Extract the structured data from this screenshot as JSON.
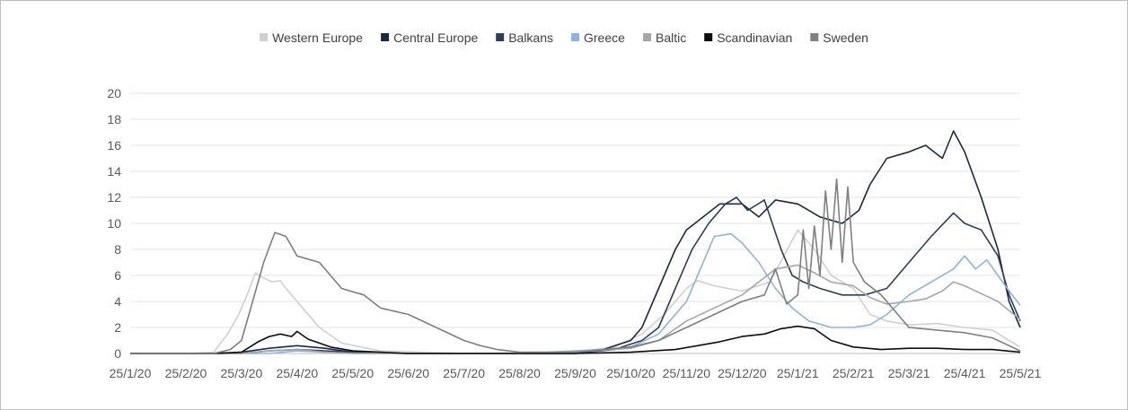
{
  "chart_data": {
    "type": "line",
    "title": "",
    "xlabel": "",
    "ylabel": "",
    "ylim": [
      0,
      20
    ],
    "y_ticks": [
      0,
      2,
      4,
      6,
      8,
      10,
      12,
      14,
      16,
      18,
      20
    ],
    "x_ticks": [
      "25/1/20",
      "25/2/20",
      "25/3/20",
      "25/4/20",
      "25/5/20",
      "25/6/20",
      "25/7/20",
      "25/8/20",
      "25/9/20",
      "25/10/20",
      "25/11/20",
      "25/12/20",
      "25/1/21",
      "25/2/21",
      "25/3/21",
      "25/4/21",
      "25/5/21"
    ],
    "grid": "horizontal",
    "legend_position": "top-center",
    "x_unit": "month index from 25/1/20 (0 = 25/1/20, 16 = 25/5/21)",
    "series": [
      {
        "name": "Western Europe",
        "color": "#d0d0d0",
        "points": [
          [
            0,
            0
          ],
          [
            1,
            0
          ],
          [
            1.5,
            0.1
          ],
          [
            1.75,
            1.5
          ],
          [
            1.95,
            3
          ],
          [
            2.1,
            4.5
          ],
          [
            2.25,
            6.2
          ],
          [
            2.4,
            5.8
          ],
          [
            2.55,
            5.5
          ],
          [
            2.7,
            5.6
          ],
          [
            2.8,
            5
          ],
          [
            3.1,
            3.5
          ],
          [
            3.4,
            2
          ],
          [
            3.8,
            0.8
          ],
          [
            4.5,
            0.2
          ],
          [
            6,
            0
          ],
          [
            8,
            0.1
          ],
          [
            8.7,
            0.5
          ],
          [
            9.2,
            1.5
          ],
          [
            9.6,
            3
          ],
          [
            10,
            5
          ],
          [
            10.2,
            5.6
          ],
          [
            10.5,
            5.2
          ],
          [
            11,
            4.8
          ],
          [
            11.5,
            5.5
          ],
          [
            12,
            9.5
          ],
          [
            12.3,
            8
          ],
          [
            12.6,
            6
          ],
          [
            13,
            5
          ],
          [
            13.3,
            3
          ],
          [
            13.6,
            2.5
          ],
          [
            14,
            2.2
          ],
          [
            14.5,
            2.3
          ],
          [
            15,
            2
          ],
          [
            15.5,
            1.8
          ],
          [
            15.8,
            1
          ],
          [
            16,
            0.5
          ]
        ]
      },
      {
        "name": "Central Europe",
        "color": "#1b2a44",
        "points": [
          [
            0,
            0
          ],
          [
            1.5,
            0
          ],
          [
            2,
            0.1
          ],
          [
            2.5,
            0.4
          ],
          [
            3,
            0.6
          ],
          [
            3.5,
            0.4
          ],
          [
            4,
            0.1
          ],
          [
            5,
            0
          ],
          [
            7,
            0
          ],
          [
            8,
            0
          ],
          [
            8.5,
            0.3
          ],
          [
            9,
            1
          ],
          [
            9.2,
            2
          ],
          [
            9.4,
            4
          ],
          [
            9.6,
            6
          ],
          [
            9.8,
            8
          ],
          [
            10,
            9.5
          ],
          [
            10.3,
            10.5
          ],
          [
            10.6,
            11.5
          ],
          [
            11,
            11.5
          ],
          [
            11.3,
            10.5
          ],
          [
            11.6,
            11.8
          ],
          [
            12,
            11.5
          ],
          [
            12.4,
            10.5
          ],
          [
            12.8,
            10
          ],
          [
            13.1,
            11
          ],
          [
            13.3,
            13
          ],
          [
            13.6,
            15
          ],
          [
            14,
            15.5
          ],
          [
            14.3,
            16
          ],
          [
            14.6,
            15
          ],
          [
            14.8,
            17.1
          ],
          [
            15,
            15.5
          ],
          [
            15.3,
            12
          ],
          [
            15.6,
            8
          ],
          [
            15.8,
            4
          ],
          [
            16,
            2
          ]
        ]
      },
      {
        "name": "Balkans",
        "color": "#2e3d5e",
        "points": [
          [
            0,
            0
          ],
          [
            2,
            0
          ],
          [
            2.5,
            0.2
          ],
          [
            3,
            0.3
          ],
          [
            3.5,
            0.2
          ],
          [
            4,
            0.1
          ],
          [
            5,
            0
          ],
          [
            8,
            0
          ],
          [
            8.7,
            0.3
          ],
          [
            9.2,
            1
          ],
          [
            9.5,
            2
          ],
          [
            9.8,
            5
          ],
          [
            10.1,
            8
          ],
          [
            10.4,
            10
          ],
          [
            10.7,
            11.5
          ],
          [
            10.9,
            12
          ],
          [
            11.1,
            11
          ],
          [
            11.4,
            11.8
          ],
          [
            11.7,
            8
          ],
          [
            11.9,
            6
          ],
          [
            12.1,
            5.5
          ],
          [
            12.4,
            5
          ],
          [
            12.8,
            4.5
          ],
          [
            13.2,
            4.5
          ],
          [
            13.6,
            5
          ],
          [
            14,
            7
          ],
          [
            14.4,
            9
          ],
          [
            14.8,
            10.8
          ],
          [
            15,
            10
          ],
          [
            15.3,
            9.5
          ],
          [
            15.6,
            7.5
          ],
          [
            15.8,
            4.5
          ],
          [
            16,
            2.5
          ]
        ]
      },
      {
        "name": "Greece",
        "color": "#8db3e2",
        "points": [
          [
            0,
            0
          ],
          [
            2.5,
            0
          ],
          [
            3,
            0.2
          ],
          [
            3.5,
            0.1
          ],
          [
            4,
            0
          ],
          [
            7,
            0
          ],
          [
            8.5,
            0.3
          ],
          [
            9,
            0.5
          ],
          [
            9.5,
            1.5
          ],
          [
            10,
            4
          ],
          [
            10.3,
            7
          ],
          [
            10.5,
            9
          ],
          [
            10.8,
            9.2
          ],
          [
            11,
            8.5
          ],
          [
            11.3,
            7
          ],
          [
            11.6,
            5
          ],
          [
            11.9,
            3.5
          ],
          [
            12.2,
            2.5
          ],
          [
            12.6,
            2
          ],
          [
            13,
            2
          ],
          [
            13.3,
            2.2
          ],
          [
            13.6,
            3
          ],
          [
            14,
            4.5
          ],
          [
            14.4,
            5.5
          ],
          [
            14.8,
            6.5
          ],
          [
            15,
            7.5
          ],
          [
            15.2,
            6.5
          ],
          [
            15.4,
            7.2
          ],
          [
            15.6,
            6
          ],
          [
            15.8,
            4.8
          ],
          [
            16,
            3.7
          ]
        ]
      },
      {
        "name": "Baltic",
        "color": "#a6a6a6",
        "points": [
          [
            0,
            0
          ],
          [
            2,
            0
          ],
          [
            2.5,
            0.2
          ],
          [
            3,
            0.3
          ],
          [
            3.5,
            0.1
          ],
          [
            4,
            0
          ],
          [
            7,
            0
          ],
          [
            8.3,
            0.2
          ],
          [
            9,
            0.4
          ],
          [
            9.5,
            1
          ],
          [
            10,
            2.5
          ],
          [
            10.5,
            3.5
          ],
          [
            11,
            4.5
          ],
          [
            11.3,
            5.5
          ],
          [
            11.6,
            6.5
          ],
          [
            12,
            6.8
          ],
          [
            12.3,
            6.2
          ],
          [
            12.6,
            5.5
          ],
          [
            13,
            5.2
          ],
          [
            13.3,
            4.3
          ],
          [
            13.6,
            3.8
          ],
          [
            14,
            4
          ],
          [
            14.3,
            4.2
          ],
          [
            14.6,
            4.8
          ],
          [
            14.8,
            5.5
          ],
          [
            15,
            5.2
          ],
          [
            15.3,
            4.6
          ],
          [
            15.6,
            4
          ],
          [
            15.8,
            3.3
          ],
          [
            16,
            2.6
          ]
        ]
      },
      {
        "name": "Scandinavian",
        "color": "#0d0d0d",
        "points": [
          [
            0,
            0
          ],
          [
            1.5,
            0
          ],
          [
            2,
            0.1
          ],
          [
            2.3,
            0.9
          ],
          [
            2.5,
            1.3
          ],
          [
            2.7,
            1.5
          ],
          [
            2.9,
            1.3
          ],
          [
            3,
            1.7
          ],
          [
            3.2,
            1.1
          ],
          [
            3.4,
            0.8
          ],
          [
            3.6,
            0.5
          ],
          [
            4,
            0.2
          ],
          [
            5,
            0
          ],
          [
            8,
            0
          ],
          [
            9,
            0.1
          ],
          [
            9.8,
            0.3
          ],
          [
            10.2,
            0.6
          ],
          [
            10.6,
            0.9
          ],
          [
            11,
            1.3
          ],
          [
            11.4,
            1.5
          ],
          [
            11.7,
            1.9
          ],
          [
            12,
            2.1
          ],
          [
            12.3,
            1.9
          ],
          [
            12.6,
            1
          ],
          [
            13,
            0.5
          ],
          [
            13.5,
            0.3
          ],
          [
            14,
            0.4
          ],
          [
            14.5,
            0.4
          ],
          [
            15,
            0.3
          ],
          [
            15.5,
            0.3
          ],
          [
            16,
            0.1
          ]
        ]
      },
      {
        "name": "Sweden",
        "color": "#7f7f7f",
        "points": [
          [
            0,
            0
          ],
          [
            1.5,
            0
          ],
          [
            1.8,
            0.3
          ],
          [
            2,
            1
          ],
          [
            2.2,
            4
          ],
          [
            2.4,
            7
          ],
          [
            2.6,
            9.3
          ],
          [
            2.8,
            9
          ],
          [
            3,
            7.5
          ],
          [
            3.4,
            7
          ],
          [
            3.8,
            5
          ],
          [
            4.2,
            4.5
          ],
          [
            4.5,
            3.5
          ],
          [
            5,
            3
          ],
          [
            5.5,
            2
          ],
          [
            6,
            1
          ],
          [
            6.3,
            0.6
          ],
          [
            6.6,
            0.3
          ],
          [
            7,
            0.1
          ],
          [
            8,
            0.1
          ],
          [
            9,
            0.5
          ],
          [
            9.5,
            1
          ],
          [
            10,
            2
          ],
          [
            10.5,
            3
          ],
          [
            11,
            4
          ],
          [
            11.4,
            4.5
          ],
          [
            11.6,
            6.5
          ],
          [
            11.8,
            3.8
          ],
          [
            12,
            4.5
          ],
          [
            12.1,
            9.5
          ],
          [
            12.2,
            5
          ],
          [
            12.3,
            9.8
          ],
          [
            12.4,
            6
          ],
          [
            12.5,
            12.5
          ],
          [
            12.6,
            8
          ],
          [
            12.7,
            13.4
          ],
          [
            12.8,
            7
          ],
          [
            12.9,
            12.8
          ],
          [
            13,
            7
          ],
          [
            13.2,
            5.5
          ],
          [
            13.5,
            4.5
          ],
          [
            13.8,
            3
          ],
          [
            14,
            2
          ],
          [
            14.5,
            1.8
          ],
          [
            15,
            1.6
          ],
          [
            15.5,
            1.2
          ],
          [
            16,
            0.2
          ]
        ]
      }
    ]
  }
}
